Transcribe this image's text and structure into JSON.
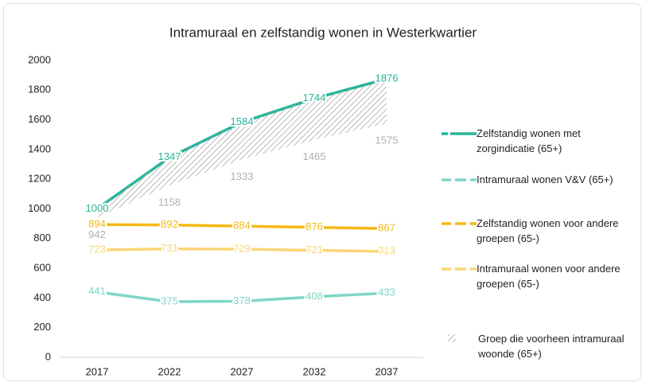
{
  "chart_data": {
    "type": "line",
    "title": "Intramuraal en zelfstandig wonen in Westerkwartier",
    "categories": [
      "2017",
      "2022",
      "2027",
      "2032",
      "2037"
    ],
    "ylim": [
      0,
      2000
    ],
    "yticks": [
      0,
      200,
      400,
      600,
      800,
      1000,
      1200,
      1400,
      1600,
      1800,
      2000
    ],
    "series": [
      {
        "name": "Zelfstandig wonen met zorgindicatie (65+)",
        "color": "#26b59a",
        "values": [
          1000,
          1347,
          1584,
          1744,
          1876
        ]
      },
      {
        "name": "Intramuraal wonen V&V (65+)",
        "color": "#7fd6c6",
        "values": [
          441,
          375,
          378,
          408,
          433
        ]
      },
      {
        "name": "Zelfstandig wonen voor andere groepen (65-)",
        "color": "#f5b914",
        "values": [
          894,
          892,
          884,
          876,
          867
        ]
      },
      {
        "name": "Intramuraal wonen voor andere groepen (65-)",
        "color": "#fbd675",
        "values": [
          723,
          731,
          729,
          721,
          713
        ]
      },
      {
        "name": "Groep die voorheen intramuraal woonde (65+)",
        "color": "#b0b0b0",
        "style": "hatch",
        "values": [
          942,
          1158,
          1333,
          1465,
          1575
        ]
      }
    ]
  }
}
